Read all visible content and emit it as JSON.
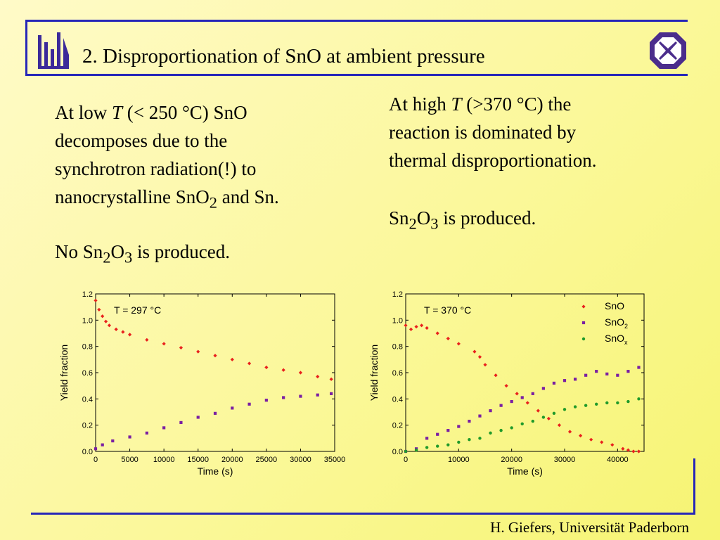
{
  "slide": {
    "title": "2. Disproportionation of SnO at ambient pressure",
    "footer": "H. Giefers, Universität Paderborn",
    "left_text": {
      "l1_pre": "At low ",
      "l1_T": "T",
      "l1_post": " (< 250 °C) SnO",
      "l2": "decomposes due to the",
      "l3": "synchrotron radiation(!) to",
      "l4_pre": "nanocrystalline SnO",
      "l4_sub": "2",
      "l4_post": " and Sn.",
      "l5_pre": "No Sn",
      "l5_sub1": "2",
      "l5_mid": "O",
      "l5_sub2": "3",
      "l5_post": " is produced."
    },
    "right_text": {
      "l1_pre": "At high ",
      "l1_T": "T",
      "l1_post": " (>370 °C) the",
      "l2": "reaction is dominated by",
      "l3": "thermal disproportionation.",
      "l4_pre": "Sn",
      "l4_sub1": "2",
      "l4_mid": "O",
      "l4_sub2": "3",
      "l4_post": " is produced."
    },
    "colors": {
      "accent": "#2626b8",
      "logo": "#3b2a9a",
      "badge": "#4b2d8c",
      "sno": "#e8211d",
      "sno2": "#7a1fa2",
      "snox": "#1f9a2a"
    }
  },
  "chart_data": [
    {
      "type": "scatter",
      "annotation": "T = 297 °C",
      "xlabel": "Time (s)",
      "ylabel": "Yield fraction",
      "xlim": [
        0,
        35000
      ],
      "ylim": [
        0,
        1.2
      ],
      "xticks": [
        0,
        5000,
        10000,
        15000,
        20000,
        25000,
        30000,
        35000
      ],
      "yticks": [
        "0.0",
        "0.2",
        "0.4",
        "0.6",
        "0.8",
        "1.0",
        "1.2"
      ],
      "legend": null,
      "series": [
        {
          "color": "#e8211d",
          "marker": "diamond",
          "x": [
            0,
            500,
            1000,
            1500,
            2000,
            3000,
            4000,
            5000,
            7500,
            10000,
            12500,
            15000,
            17500,
            20000,
            22500,
            25000,
            27500,
            30000,
            32500,
            34500
          ],
          "y": [
            1.15,
            1.08,
            1.03,
            0.99,
            0.96,
            0.93,
            0.91,
            0.89,
            0.85,
            0.82,
            0.79,
            0.76,
            0.73,
            0.7,
            0.67,
            0.64,
            0.62,
            0.6,
            0.57,
            0.55
          ]
        },
        {
          "color": "#7a1fa2",
          "marker": "square",
          "x": [
            0,
            1000,
            2500,
            5000,
            7500,
            10000,
            12500,
            15000,
            17500,
            20000,
            22500,
            25000,
            27500,
            30000,
            32500,
            34500
          ],
          "y": [
            0.02,
            0.05,
            0.08,
            0.11,
            0.14,
            0.18,
            0.22,
            0.26,
            0.29,
            0.33,
            0.36,
            0.39,
            0.41,
            0.42,
            0.43,
            0.44
          ]
        }
      ]
    },
    {
      "type": "scatter",
      "annotation": "T = 370 °C",
      "xlabel": "Time (s)",
      "ylabel": "Yield fraction",
      "xlim": [
        0,
        45000
      ],
      "ylim": [
        0,
        1.2
      ],
      "xticks": [
        0,
        10000,
        20000,
        30000,
        40000
      ],
      "yticks": [
        "0.0",
        "0.2",
        "0.4",
        "0.6",
        "0.8",
        "1.0",
        "1.2"
      ],
      "legend": "top-right",
      "series": [
        {
          "name": "SnO",
          "color": "#e8211d",
          "marker": "diamond",
          "x": [
            0,
            1000,
            2000,
            3000,
            4000,
            6000,
            8000,
            10000,
            13000,
            14000,
            15000,
            17000,
            19000,
            21000,
            23000,
            25000,
            27000,
            29000,
            31000,
            33000,
            35000,
            37000,
            39000,
            41000,
            42000,
            43000,
            44000
          ],
          "y": [
            0.96,
            0.93,
            0.95,
            0.96,
            0.94,
            0.9,
            0.86,
            0.82,
            0.76,
            0.72,
            0.66,
            0.58,
            0.5,
            0.44,
            0.37,
            0.31,
            0.25,
            0.2,
            0.15,
            0.12,
            0.09,
            0.07,
            0.05,
            0.02,
            0.01,
            0.0,
            0.0
          ]
        },
        {
          "name": "SnO2",
          "color": "#7a1fa2",
          "marker": "square",
          "x": [
            0,
            2000,
            4000,
            6000,
            8000,
            10000,
            12000,
            14000,
            16000,
            18000,
            20000,
            22000,
            24000,
            26000,
            28000,
            30000,
            32000,
            34000,
            36000,
            38000,
            40000,
            42000,
            44000
          ],
          "y": [
            0.0,
            0.02,
            0.1,
            0.13,
            0.16,
            0.19,
            0.23,
            0.27,
            0.31,
            0.35,
            0.38,
            0.41,
            0.44,
            0.48,
            0.52,
            0.54,
            0.55,
            0.58,
            0.61,
            0.59,
            0.58,
            0.61,
            0.64
          ]
        },
        {
          "name": "SnOx",
          "color": "#1f9a2a",
          "marker": "circle",
          "x": [
            0,
            2000,
            4000,
            6000,
            8000,
            10000,
            12000,
            14000,
            16000,
            18000,
            20000,
            22000,
            24000,
            26000,
            28000,
            30000,
            32000,
            34000,
            36000,
            38000,
            40000,
            42000,
            44000
          ],
          "y": [
            0.0,
            0.01,
            0.03,
            0.04,
            0.05,
            0.07,
            0.09,
            0.1,
            0.14,
            0.16,
            0.18,
            0.21,
            0.23,
            0.26,
            0.29,
            0.32,
            0.34,
            0.35,
            0.36,
            0.37,
            0.37,
            0.38,
            0.4
          ]
        }
      ],
      "legend_labels": [
        {
          "main": "SnO",
          "sub": ""
        },
        {
          "main": "SnO",
          "sub": "2"
        },
        {
          "main": "SnO",
          "sub": "x"
        }
      ]
    }
  ]
}
